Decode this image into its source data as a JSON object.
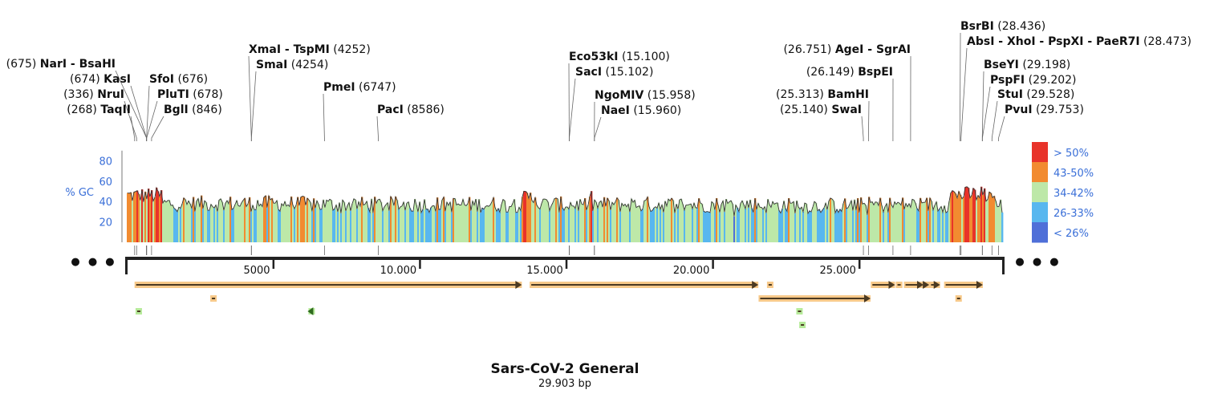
{
  "title": "Sars-CoV-2 General",
  "subtitle": "29.903 bp",
  "sequence_length": 29903,
  "gc_axis": {
    "label": "% GC",
    "ticks": [
      20,
      40,
      60,
      80
    ]
  },
  "legend": [
    {
      "label": "> 50%",
      "color": "#e8332a"
    },
    {
      "label": "43-50%",
      "color": "#f28b30"
    },
    {
      "label": "34-42%",
      "color": "#bde8a8"
    },
    {
      "label": "26-33%",
      "color": "#58b7ef"
    },
    {
      "label": "< 26%",
      "color": "#4f6fd8"
    }
  ],
  "ruler_ticks": [
    {
      "label": "5000",
      "pos": 5000
    },
    {
      "label": "10.000",
      "pos": 10000
    },
    {
      "label": "15.000",
      "pos": 15000
    },
    {
      "label": "20.000",
      "pos": 20000
    },
    {
      "label": "25.000",
      "pos": 25000
    }
  ],
  "ellipsis": "● ● ●",
  "sites": [
    {
      "name": "NarI - BsaHI",
      "pos_label": "(675)",
      "pos": 675,
      "side": "left"
    },
    {
      "name": "KasI",
      "pos_label": "(674)",
      "pos": 674,
      "side": "left"
    },
    {
      "name": "NruI",
      "pos_label": "(336)",
      "pos": 336,
      "side": "left"
    },
    {
      "name": "TaqII",
      "pos_label": "(268)",
      "pos": 268,
      "side": "left"
    },
    {
      "name": "SfoI",
      "pos_label": "(676)",
      "pos": 676,
      "side": "right"
    },
    {
      "name": "PluTI",
      "pos_label": "(678)",
      "pos": 678,
      "side": "right"
    },
    {
      "name": "BglI",
      "pos_label": "(846)",
      "pos": 846,
      "side": "right"
    },
    {
      "name": "XmaI - TspMI",
      "pos_label": "(4252)",
      "pos": 4252,
      "side": "right"
    },
    {
      "name": "SmaI",
      "pos_label": "(4254)",
      "pos": 4254,
      "side": "right"
    },
    {
      "name": "PmeI",
      "pos_label": "(6747)",
      "pos": 6747,
      "side": "right"
    },
    {
      "name": "PacI",
      "pos_label": "(8586)",
      "pos": 8586,
      "side": "right"
    },
    {
      "name": "Eco53kI",
      "pos_label": "(15.100)",
      "pos": 15100,
      "side": "right"
    },
    {
      "name": "SacI",
      "pos_label": "(15.102)",
      "pos": 15102,
      "side": "right"
    },
    {
      "name": "NgoMIV",
      "pos_label": "(15.958)",
      "pos": 15958,
      "side": "right"
    },
    {
      "name": "NaeI",
      "pos_label": "(15.960)",
      "pos": 15960,
      "side": "right"
    },
    {
      "name": "AgeI - SgrAI",
      "pos_label": "(26.751)",
      "pos": 26751,
      "side": "left"
    },
    {
      "name": "BspEI",
      "pos_label": "(26.149)",
      "pos": 26149,
      "side": "left"
    },
    {
      "name": "BamHI",
      "pos_label": "(25.313)",
      "pos": 25313,
      "side": "left"
    },
    {
      "name": "SwaI",
      "pos_label": "(25.140)",
      "pos": 25140,
      "side": "left"
    },
    {
      "name": "BsrBI",
      "pos_label": "(28.436)",
      "pos": 28436,
      "side": "right"
    },
    {
      "name": "AbsI - XhoI - PspXI - PaeR7I",
      "pos_label": "(28.473)",
      "pos": 28473,
      "side": "right"
    },
    {
      "name": "BseYI",
      "pos_label": "(29.198)",
      "pos": 29198,
      "side": "right"
    },
    {
      "name": "PspFI",
      "pos_label": "(29.202)",
      "pos": 29202,
      "side": "right"
    },
    {
      "name": "StuI",
      "pos_label": "(29.528)",
      "pos": 29528,
      "side": "right"
    },
    {
      "name": "PvuI",
      "pos_label": "(29.753)",
      "pos": 29753,
      "side": "right"
    }
  ],
  "features": [
    {
      "start": 266,
      "end": 13483,
      "row": 0,
      "kind": "orf",
      "arrow": "right"
    },
    {
      "start": 13750,
      "end": 21555,
      "row": 0,
      "kind": "orf",
      "arrow": "right"
    },
    {
      "start": 21850,
      "end": 22050,
      "row": 0,
      "kind": "orf",
      "arrow": "none"
    },
    {
      "start": 25393,
      "end": 26220,
      "row": 0,
      "kind": "orf",
      "arrow": "right"
    },
    {
      "start": 26245,
      "end": 26472,
      "row": 0,
      "kind": "orf",
      "arrow": "none"
    },
    {
      "start": 26523,
      "end": 27191,
      "row": 0,
      "kind": "orf",
      "arrow": "right"
    },
    {
      "start": 27202,
      "end": 27387,
      "row": 0,
      "kind": "orf",
      "arrow": "right"
    },
    {
      "start": 27394,
      "end": 27759,
      "row": 0,
      "kind": "orf",
      "arrow": "right"
    },
    {
      "start": 27894,
      "end": 29217,
      "row": 0,
      "kind": "orf",
      "arrow": "right"
    },
    {
      "start": 2850,
      "end": 3050,
      "row": 1,
      "kind": "orf",
      "arrow": "none"
    },
    {
      "start": 21563,
      "end": 25384,
      "row": 1,
      "kind": "orf",
      "arrow": "right"
    },
    {
      "start": 28280,
      "end": 28500,
      "row": 1,
      "kind": "orf",
      "arrow": "none"
    },
    {
      "start": 300,
      "end": 500,
      "row": 2,
      "kind": "misc",
      "arrow": "none"
    },
    {
      "start": 6200,
      "end": 6400,
      "row": 2,
      "kind": "misc",
      "arrow": "left"
    },
    {
      "start": 22850,
      "end": 23050,
      "row": 2,
      "kind": "misc",
      "arrow": "none"
    },
    {
      "start": 22950,
      "end": 23150,
      "row": 3,
      "kind": "misc",
      "arrow": "none"
    }
  ],
  "gc_regions": [
    {
      "start": 0,
      "end": 1200,
      "gc": 46
    },
    {
      "start": 1200,
      "end": 6000,
      "gc": 38
    },
    {
      "start": 6000,
      "end": 13500,
      "gc": 37
    },
    {
      "start": 13500,
      "end": 14000,
      "gc": 44
    },
    {
      "start": 14000,
      "end": 21500,
      "gc": 37
    },
    {
      "start": 21500,
      "end": 25000,
      "gc": 36
    },
    {
      "start": 25000,
      "end": 28000,
      "gc": 37
    },
    {
      "start": 28000,
      "end": 29600,
      "gc": 47
    },
    {
      "start": 29600,
      "end": 29903,
      "gc": 36
    }
  ]
}
